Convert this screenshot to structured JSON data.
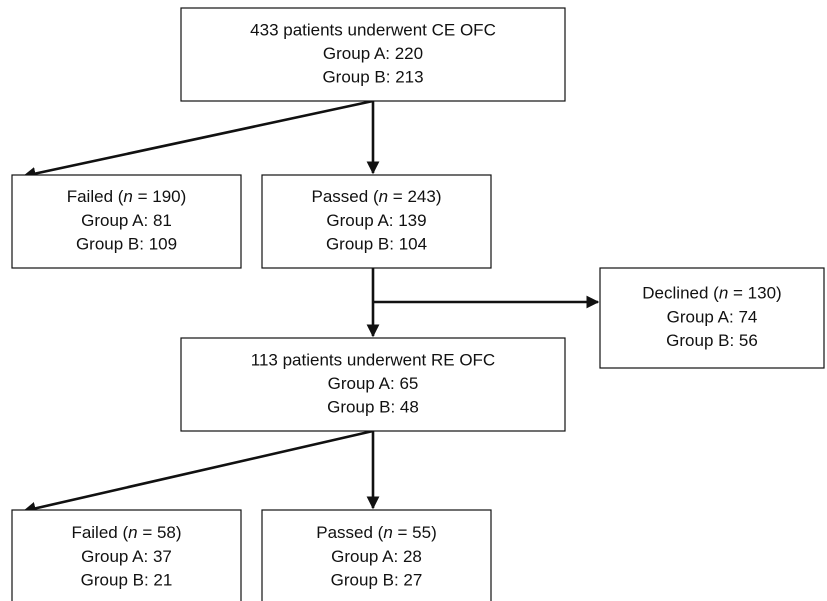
{
  "nodes": [
    {
      "title": "433 patients underwent CE OFC",
      "lines": [
        "Group A: 220",
        "Group B: 213"
      ]
    },
    {
      "title_pre": "Failed (",
      "title_var": "n",
      "title_post": " = 190)",
      "lines": [
        "Group A: 81",
        "Group B: 109"
      ]
    },
    {
      "title_pre": "Passed (",
      "title_var": "n",
      "title_post": " = 243)",
      "lines": [
        "Group A: 139",
        "Group B: 104"
      ]
    },
    {
      "title_pre": "Declined (",
      "title_var": "n",
      "title_post": " = 130)",
      "lines": [
        "Group A: 74",
        "Group B: 56"
      ]
    },
    {
      "title": "113 patients underwent RE OFC",
      "lines": [
        "Group A: 65",
        "Group B: 48"
      ]
    },
    {
      "title_pre": "Failed (",
      "title_var": "n",
      "title_post": " = 58)",
      "lines": [
        "Group A: 37",
        "Group B: 21"
      ]
    },
    {
      "title_pre": "Passed (",
      "title_var": "n",
      "title_post": " = 55)",
      "lines": [
        "Group A: 28",
        "Group B: 27"
      ]
    }
  ]
}
